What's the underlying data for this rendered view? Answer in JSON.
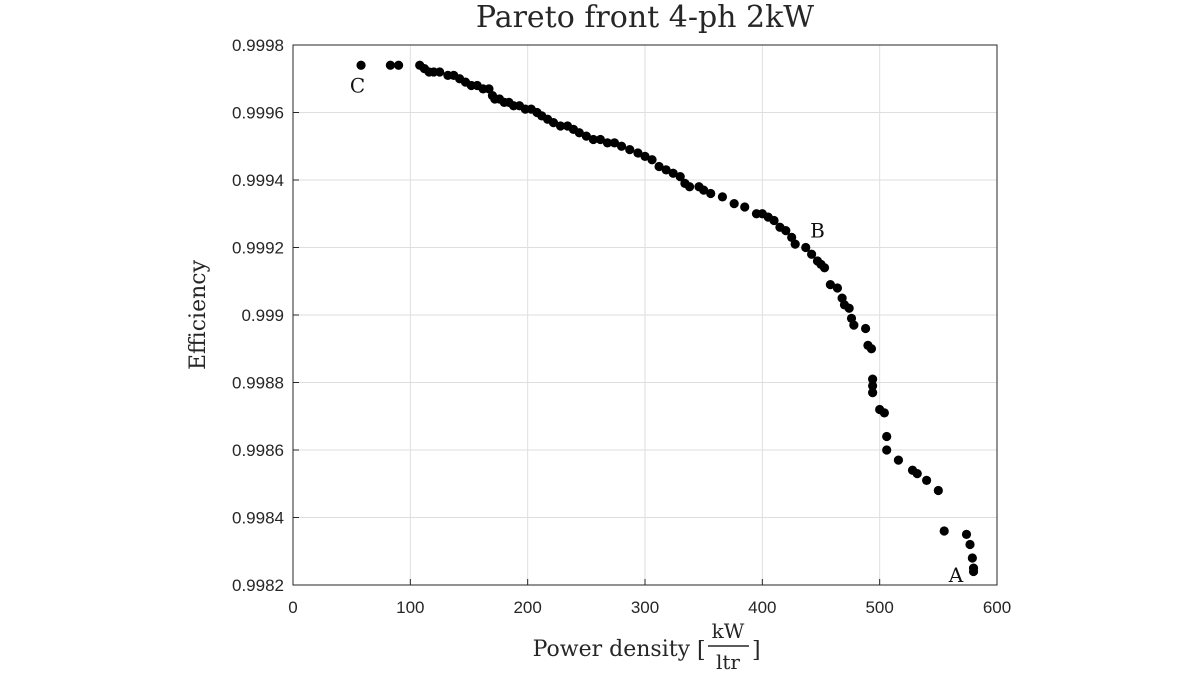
{
  "chart_data": {
    "type": "scatter",
    "title": "Pareto front 4-ph 2kW",
    "xlabel": "Power density",
    "xlabel_unit": {
      "bracket_open": "[",
      "numerator": "kW",
      "denominator": "ltr",
      "bracket_close": "]"
    },
    "ylabel": "Efficiency",
    "xlim": [
      0,
      600
    ],
    "ylim": [
      0.9982,
      0.9998
    ],
    "x_ticks": [
      0,
      100,
      200,
      300,
      400,
      500,
      600
    ],
    "x_tick_labels": [
      "0",
      "100",
      "200",
      "300",
      "400",
      "500",
      "600"
    ],
    "y_ticks": [
      0.9982,
      0.9984,
      0.9986,
      0.9988,
      0.999,
      0.9992,
      0.9994,
      0.9996,
      0.9998
    ],
    "y_tick_labels": [
      "0.9982",
      "0.9984",
      "0.9986",
      "0.9988",
      "0.999",
      "0.9992",
      "0.9994",
      "0.9996",
      "0.9998"
    ],
    "grid": true,
    "marker_color": "#000000",
    "series": [
      {
        "points": [
          [
            58,
            0.99974
          ],
          [
            83,
            0.99974
          ],
          [
            90,
            0.99974
          ],
          [
            108,
            0.99974
          ],
          [
            112,
            0.99973
          ],
          [
            116,
            0.99972
          ],
          [
            120,
            0.99972
          ],
          [
            125,
            0.99972
          ],
          [
            132,
            0.99971
          ],
          [
            137,
            0.99971
          ],
          [
            142,
            0.9997
          ],
          [
            147,
            0.99969
          ],
          [
            152,
            0.99968
          ],
          [
            157,
            0.99968
          ],
          [
            162,
            0.99967
          ],
          [
            167,
            0.99967
          ],
          [
            170,
            0.99965
          ],
          [
            172,
            0.99964
          ],
          [
            176,
            0.99964
          ],
          [
            180,
            0.99963
          ],
          [
            184,
            0.99963
          ],
          [
            188,
            0.99962
          ],
          [
            193,
            0.99962
          ],
          [
            198,
            0.99961
          ],
          [
            203,
            0.99961
          ],
          [
            208,
            0.9996
          ],
          [
            212,
            0.99959
          ],
          [
            217,
            0.99958
          ],
          [
            222,
            0.99957
          ],
          [
            228,
            0.99956
          ],
          [
            234,
            0.99956
          ],
          [
            239,
            0.99955
          ],
          [
            244,
            0.99954
          ],
          [
            250,
            0.99953
          ],
          [
            256,
            0.99952
          ],
          [
            262,
            0.99952
          ],
          [
            268,
            0.99951
          ],
          [
            274,
            0.99951
          ],
          [
            280,
            0.9995
          ],
          [
            287,
            0.99949
          ],
          [
            294,
            0.99948
          ],
          [
            300,
            0.99947
          ],
          [
            306,
            0.99946
          ],
          [
            312,
            0.99944
          ],
          [
            318,
            0.99943
          ],
          [
            324,
            0.99942
          ],
          [
            330,
            0.99941
          ],
          [
            334,
            0.99939
          ],
          [
            338,
            0.99938
          ],
          [
            346,
            0.99938
          ],
          [
            350,
            0.99937
          ],
          [
            356,
            0.99936
          ],
          [
            366,
            0.99935
          ],
          [
            376,
            0.99933
          ],
          [
            385,
            0.99932
          ],
          [
            395,
            0.9993
          ],
          [
            400,
            0.9993
          ],
          [
            405,
            0.99929
          ],
          [
            410,
            0.99928
          ],
          [
            415,
            0.99926
          ],
          [
            420,
            0.99925
          ],
          [
            425,
            0.99923
          ],
          [
            428,
            0.99921
          ],
          [
            437,
            0.9992
          ],
          [
            442,
            0.99918
          ],
          [
            447,
            0.99916
          ],
          [
            450,
            0.99915
          ],
          [
            453,
            0.99914
          ],
          [
            458,
            0.99909
          ],
          [
            464,
            0.99908
          ],
          [
            468,
            0.99905
          ],
          [
            470,
            0.99903
          ],
          [
            474,
            0.99902
          ],
          [
            476,
            0.99899
          ],
          [
            478,
            0.99897
          ],
          [
            488,
            0.99896
          ],
          [
            490,
            0.99891
          ],
          [
            493,
            0.9989
          ],
          [
            494,
            0.99881
          ],
          [
            494,
            0.99879
          ],
          [
            494,
            0.99877
          ],
          [
            500,
            0.99872
          ],
          [
            504,
            0.99871
          ],
          [
            506,
            0.99864
          ],
          [
            506,
            0.9986
          ],
          [
            516,
            0.99857
          ],
          [
            528,
            0.99854
          ],
          [
            532,
            0.99853
          ],
          [
            540,
            0.99851
          ],
          [
            550,
            0.99848
          ],
          [
            555,
            0.99836
          ],
          [
            574,
            0.99835
          ],
          [
            577,
            0.99832
          ],
          [
            579,
            0.99828
          ],
          [
            580,
            0.99825
          ],
          [
            580,
            0.99824
          ]
        ]
      }
    ],
    "annotations": [
      {
        "text": "C",
        "x": 55,
        "y": 0.99968
      },
      {
        "text": "B",
        "x": 447,
        "y": 0.99925
      },
      {
        "text": "A",
        "x": 565,
        "y": 0.99823
      }
    ]
  }
}
